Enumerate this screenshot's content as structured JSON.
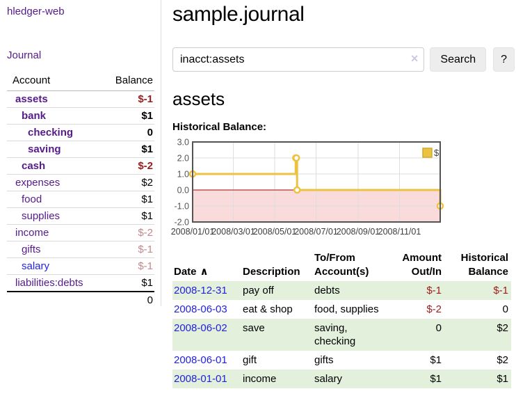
{
  "app": {
    "title": "hledger-web"
  },
  "sidebar": {
    "journal_link": "Journal",
    "accounts_table": {
      "headers": {
        "account": "Account",
        "balance": "Balance"
      },
      "rows": [
        {
          "name": "assets",
          "balance": "$-1",
          "depth": 1,
          "bold": true,
          "link_style": "purple"
        },
        {
          "name": "bank",
          "balance": "$1",
          "depth": 2,
          "bold": true,
          "link_style": "purple"
        },
        {
          "name": "checking",
          "balance": "0",
          "depth": 3,
          "bold": true,
          "link_style": "purple"
        },
        {
          "name": "saving",
          "balance": "$1",
          "depth": 3,
          "bold": true,
          "link_style": "purple"
        },
        {
          "name": "cash",
          "balance": "$-2",
          "depth": 2,
          "bold": true,
          "link_style": "purple"
        },
        {
          "name": "expenses",
          "balance": "$2",
          "depth": 1,
          "bold": false,
          "link_style": "purple"
        },
        {
          "name": "food",
          "balance": "$1",
          "depth": 2,
          "bold": false,
          "link_style": "purple"
        },
        {
          "name": "supplies",
          "balance": "$1",
          "depth": 2,
          "bold": false,
          "link_style": "purple"
        },
        {
          "name": "income",
          "balance": "$-2",
          "depth": 1,
          "bold": false,
          "link_style": "purple"
        },
        {
          "name": "gifts",
          "balance": "$-1",
          "depth": 2,
          "bold": false,
          "link_style": "purple"
        },
        {
          "name": "salary",
          "balance": "$-1",
          "depth": 2,
          "bold": false,
          "link_style": "blue"
        },
        {
          "name": "liabilities:debts",
          "balance": "$1",
          "depth": 1,
          "bold": false,
          "link_style": "purple"
        }
      ],
      "total": "0"
    }
  },
  "header": {
    "title": "sample.journal"
  },
  "search": {
    "value": "inacct:assets",
    "clear_icon": "×",
    "button": "Search",
    "help_button": "?"
  },
  "account_page": {
    "heading": "assets",
    "chart_label": "Historical Balance:"
  },
  "chart_data": {
    "type": "line",
    "step": true,
    "title": "Historical Balance",
    "series": [
      {
        "name": "$",
        "color": "#edc240",
        "points": [
          [
            "2008-01-01",
            1
          ],
          [
            "2008-06-01",
            2
          ],
          [
            "2008-06-02",
            2
          ],
          [
            "2008-06-03",
            0
          ],
          [
            "2008-12-31",
            -1
          ]
        ]
      }
    ],
    "xlim": [
      "2008-01-01",
      "2008-12-31"
    ],
    "ylim": [
      -2,
      3
    ],
    "y_ticks": [
      "3.0",
      "2.0",
      "1.0",
      "0.0",
      "-1.0",
      "-2.0"
    ],
    "x_ticks": [
      {
        "label": "2008/01/01",
        "date": "2008-01-01"
      },
      {
        "label": "2008/03/01",
        "date": "2008-03-01"
      },
      {
        "label": "2008/05/01",
        "date": "2008-05-01"
      },
      {
        "label": "2008/07/01",
        "date": "2008-07-01"
      },
      {
        "label": "2008/09/01",
        "date": "2008-09-01"
      },
      {
        "label": "2008/11/01",
        "date": "2008-11-01"
      }
    ],
    "legend": {
      "label": "$",
      "position": "top-right"
    },
    "grid": true,
    "negative_region_color": "#fadbdb",
    "zero_line_color": "#a40000",
    "border_color": "#545454",
    "gridline_color": "#dddddd"
  },
  "register_table": {
    "headers": {
      "date": "Date",
      "sort_icon": "∧",
      "description": "Description",
      "account": "To/From Account(s)",
      "amount": "Amount Out/In",
      "balance": "Historical Balance"
    },
    "rows": [
      {
        "date": "2008-12-31",
        "description": "pay off",
        "accounts": "debts",
        "amount": "$-1",
        "balance": "$-1"
      },
      {
        "date": "2008-06-03",
        "description": "eat & shop",
        "accounts": "food, supplies",
        "amount": "$-2",
        "balance": "0"
      },
      {
        "date": "2008-06-02",
        "description": "save",
        "accounts": "saving, checking",
        "amount": "0",
        "balance": "$2"
      },
      {
        "date": "2008-06-01",
        "description": "gift",
        "accounts": "gifts",
        "amount": "$1",
        "balance": "$2"
      },
      {
        "date": "2008-01-01",
        "description": "income",
        "accounts": "salary",
        "amount": "$1",
        "balance": "$1"
      }
    ]
  }
}
